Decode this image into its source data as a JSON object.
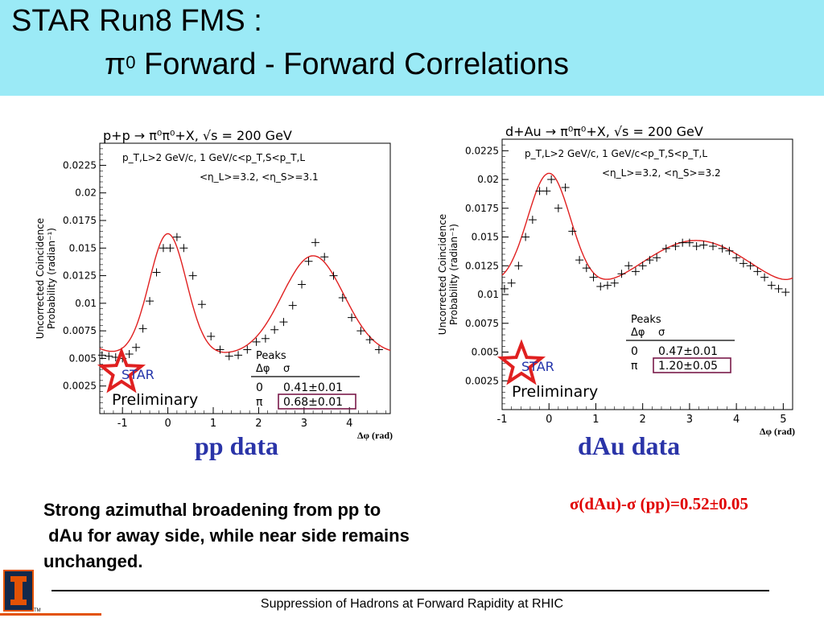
{
  "slide": {
    "title_line1": "STAR Run8 FMS :",
    "title_pi": "π",
    "title_pi_sup": "0",
    "title_line2_rest": " Forward - Forward  Correlations",
    "caption_pp": "pp data",
    "caption_dau": "dAu data",
    "sigma_diff": "σ(dAu)-σ (pp)=0.52±0.05",
    "body_text": "Strong azimuthal broadening from pp to\n dAu for away side, while near side remains\nunchanged.",
    "footer": "Suppression of Hadrons at Forward Rapidity at RHIC",
    "logo_tm": "TM"
  },
  "chart_data": [
    {
      "type": "scatter",
      "title": "p+p  →  π⁰π⁰+X, √s = 200 GeV",
      "subtitle1": "p_T,L>2 GeV/c,  1 GeV/c<p_T,S<p_T,L",
      "subtitle2": "<η_L>=3.2, <η_S>=3.1",
      "xlabel": "Δφ (rad)",
      "ylabel_line1": "Uncorrected Coincidence",
      "ylabel_line2": "Probability (radian⁻¹)",
      "xlim": [
        -1.5,
        4.9
      ],
      "ylim": [
        0,
        0.0245
      ],
      "xticks": [
        "-1",
        "0",
        "1",
        "2",
        "3",
        "4"
      ],
      "xtick_values": [
        -1,
        0,
        1,
        2,
        3,
        4
      ],
      "yticks": [
        "0.0025",
        "0.005",
        "0.0075",
        "0.01",
        "0.0125",
        "0.015",
        "0.0175",
        "0.02",
        "0.0225"
      ],
      "ytick_values": [
        0.0025,
        0.005,
        0.0075,
        0.01,
        0.0125,
        0.015,
        0.0175,
        0.02,
        0.0225
      ],
      "peaks_label": "Peaks",
      "peaks_col_dphi": "Δφ",
      "peaks_col_sigma": "σ",
      "peaks_rows": [
        [
          "0",
          "0.41±0.01"
        ],
        [
          "π",
          "0.68±0.01"
        ]
      ],
      "highlight_row": 1,
      "logo_text": "STAR",
      "preliminary": "Preliminary",
      "points": {
        "x": [
          -1.45,
          -1.3,
          -1.15,
          -1.0,
          -0.85,
          -0.7,
          -0.55,
          -0.4,
          -0.25,
          -0.1,
          0.05,
          0.2,
          0.35,
          0.55,
          0.75,
          0.95,
          1.15,
          1.35,
          1.55,
          1.75,
          1.95,
          2.15,
          2.35,
          2.55,
          2.75,
          2.95,
          3.1,
          3.25,
          3.45,
          3.65,
          3.85,
          4.05,
          4.25,
          4.45,
          4.65
        ],
        "y": [
          0.0053,
          0.0052,
          0.0051,
          0.005,
          0.0054,
          0.006,
          0.0077,
          0.0102,
          0.0128,
          0.015,
          0.015,
          0.016,
          0.015,
          0.0125,
          0.0099,
          0.007,
          0.0058,
          0.0052,
          0.0053,
          0.0058,
          0.0065,
          0.0068,
          0.0076,
          0.0083,
          0.0098,
          0.0117,
          0.0138,
          0.0155,
          0.0142,
          0.0125,
          0.0105,
          0.0087,
          0.0075,
          0.0067,
          0.0058
        ]
      },
      "fit": {
        "baseline": 0.0053,
        "near_amp": 0.011,
        "near_mu": 0.0,
        "near_sigma": 0.41,
        "away_amp": 0.009,
        "away_mu": 3.2,
        "away_sigma": 0.68
      }
    },
    {
      "type": "scatter",
      "title": "d+Au  →  π⁰π⁰+X, √s = 200 GeV",
      "subtitle1": "p_T,L>2 GeV/c,  1 GeV/c<p_T,S<p_T,L",
      "subtitle2": "<η_L>=3.2, <η_S>=3.2",
      "xlabel": "Δφ (rad)",
      "ylabel_line1": "Uncorrected Coincidence",
      "ylabel_line2": "Probability (radian⁻¹)",
      "xlim": [
        -1.0,
        5.2
      ],
      "ylim": [
        0,
        0.0235
      ],
      "xticks": [
        "-1",
        "0",
        "1",
        "2",
        "3",
        "4",
        "5"
      ],
      "xtick_values": [
        -1,
        0,
        1,
        2,
        3,
        4,
        5
      ],
      "yticks": [
        "0.0025",
        "0.005",
        "0.0075",
        "0.01",
        "0.0125",
        "0.015",
        "0.0175",
        "0.02",
        "0.0225"
      ],
      "ytick_values": [
        0.0025,
        0.005,
        0.0075,
        0.01,
        0.0125,
        0.015,
        0.0175,
        0.02,
        0.0225
      ],
      "peaks_label": "Peaks",
      "peaks_col_dphi": "Δφ",
      "peaks_col_sigma": "σ",
      "peaks_rows": [
        [
          "0",
          "0.47±0.01"
        ],
        [
          "π",
          "1.20±0.05"
        ]
      ],
      "highlight_row": 1,
      "logo_text": "STAR",
      "preliminary": "Preliminary",
      "points": {
        "x": [
          -0.95,
          -0.8,
          -0.65,
          -0.5,
          -0.35,
          -0.2,
          -0.05,
          0.05,
          0.2,
          0.35,
          0.5,
          0.65,
          0.8,
          0.95,
          1.1,
          1.25,
          1.4,
          1.55,
          1.7,
          1.85,
          2.0,
          2.15,
          2.3,
          2.5,
          2.7,
          2.85,
          3.0,
          3.15,
          3.3,
          3.5,
          3.7,
          3.85,
          4.0,
          4.15,
          4.3,
          4.45,
          4.6,
          4.75,
          4.9,
          5.05
        ],
        "y": [
          0.0105,
          0.011,
          0.0125,
          0.015,
          0.0165,
          0.019,
          0.019,
          0.02,
          0.0175,
          0.0193,
          0.0155,
          0.013,
          0.0123,
          0.0115,
          0.0107,
          0.0108,
          0.011,
          0.0118,
          0.0125,
          0.012,
          0.0125,
          0.013,
          0.0132,
          0.014,
          0.0142,
          0.0145,
          0.0145,
          0.0142,
          0.0143,
          0.0142,
          0.014,
          0.0138,
          0.0132,
          0.0127,
          0.0125,
          0.012,
          0.0115,
          0.0108,
          0.0105,
          0.0102
        ]
      },
      "fit": {
        "baseline": 0.0095,
        "near_amp": 0.0107,
        "near_mu": 0.0,
        "near_sigma": 0.47,
        "away_amp": 0.0052,
        "away_mu": 3.14,
        "away_sigma": 1.2
      }
    }
  ]
}
